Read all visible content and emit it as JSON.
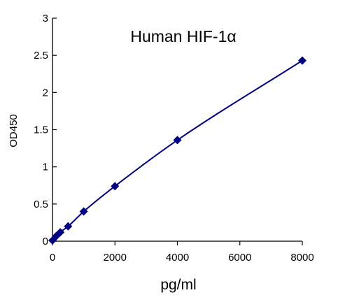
{
  "chart_data": {
    "type": "scatter",
    "title": "Human  HIF-1α",
    "xlabel": "pg/ml",
    "ylabel": "OD450",
    "xlim": [
      0,
      8000
    ],
    "ylim": [
      0,
      3
    ],
    "xticks": [
      0,
      2000,
      4000,
      6000,
      8000
    ],
    "xtick_labels": [
      "0",
      "2000",
      "4000",
      "6000",
      "8000"
    ],
    "yticks": [
      0,
      0.5,
      1,
      1.5,
      2,
      2.5,
      3
    ],
    "ytick_labels": [
      "0",
      "0.5",
      "1",
      "1.5",
      "2",
      "2.5",
      "3"
    ],
    "grid": false,
    "legend": "none",
    "series": [
      {
        "x": [
          0,
          125,
          250,
          500,
          1000,
          2000,
          4000,
          8000
        ],
        "y": [
          0.01,
          0.07,
          0.12,
          0.2,
          0.4,
          0.74,
          1.36,
          2.43
        ],
        "marker": "diamond",
        "trendline": true,
        "color": "#000080"
      }
    ]
  }
}
